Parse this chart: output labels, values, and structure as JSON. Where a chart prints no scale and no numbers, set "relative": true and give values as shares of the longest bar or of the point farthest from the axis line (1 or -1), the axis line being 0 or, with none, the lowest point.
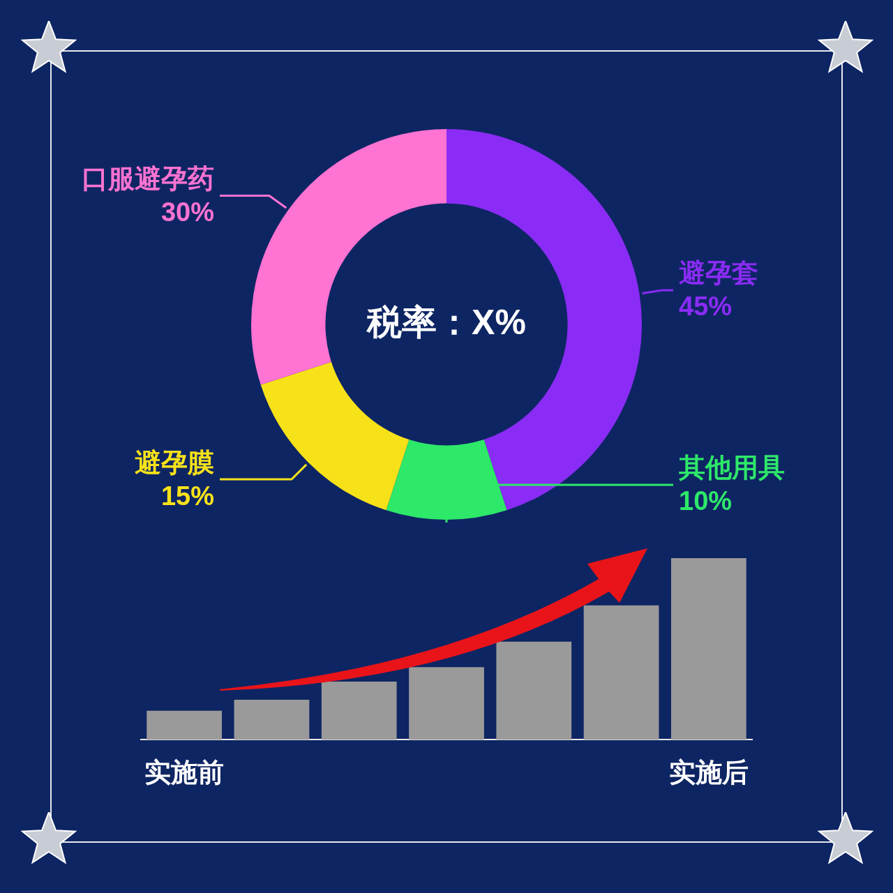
{
  "chart_data": [
    {
      "type": "donut",
      "categories": [
        "避孕套",
        "其他用具",
        "避孕膜",
        "口服避孕药"
      ],
      "values": [
        45,
        10,
        15,
        30
      ],
      "colors": [
        "#8a2cf5",
        "#2ee86a",
        "#f7e21a",
        "#ff73d2"
      ],
      "value_labels": [
        "45%",
        "10%",
        "15%",
        "30%"
      ],
      "annotations": [
        "税率：X%"
      ]
    },
    {
      "type": "bar",
      "relative": true,
      "categories": [
        "实施前",
        null,
        null,
        null,
        null,
        null,
        "实施后"
      ],
      "values": [
        0.16,
        0.22,
        0.32,
        0.4,
        0.54,
        0.74,
        1
      ],
      "color": "#9a9a9a"
    }
  ]
}
